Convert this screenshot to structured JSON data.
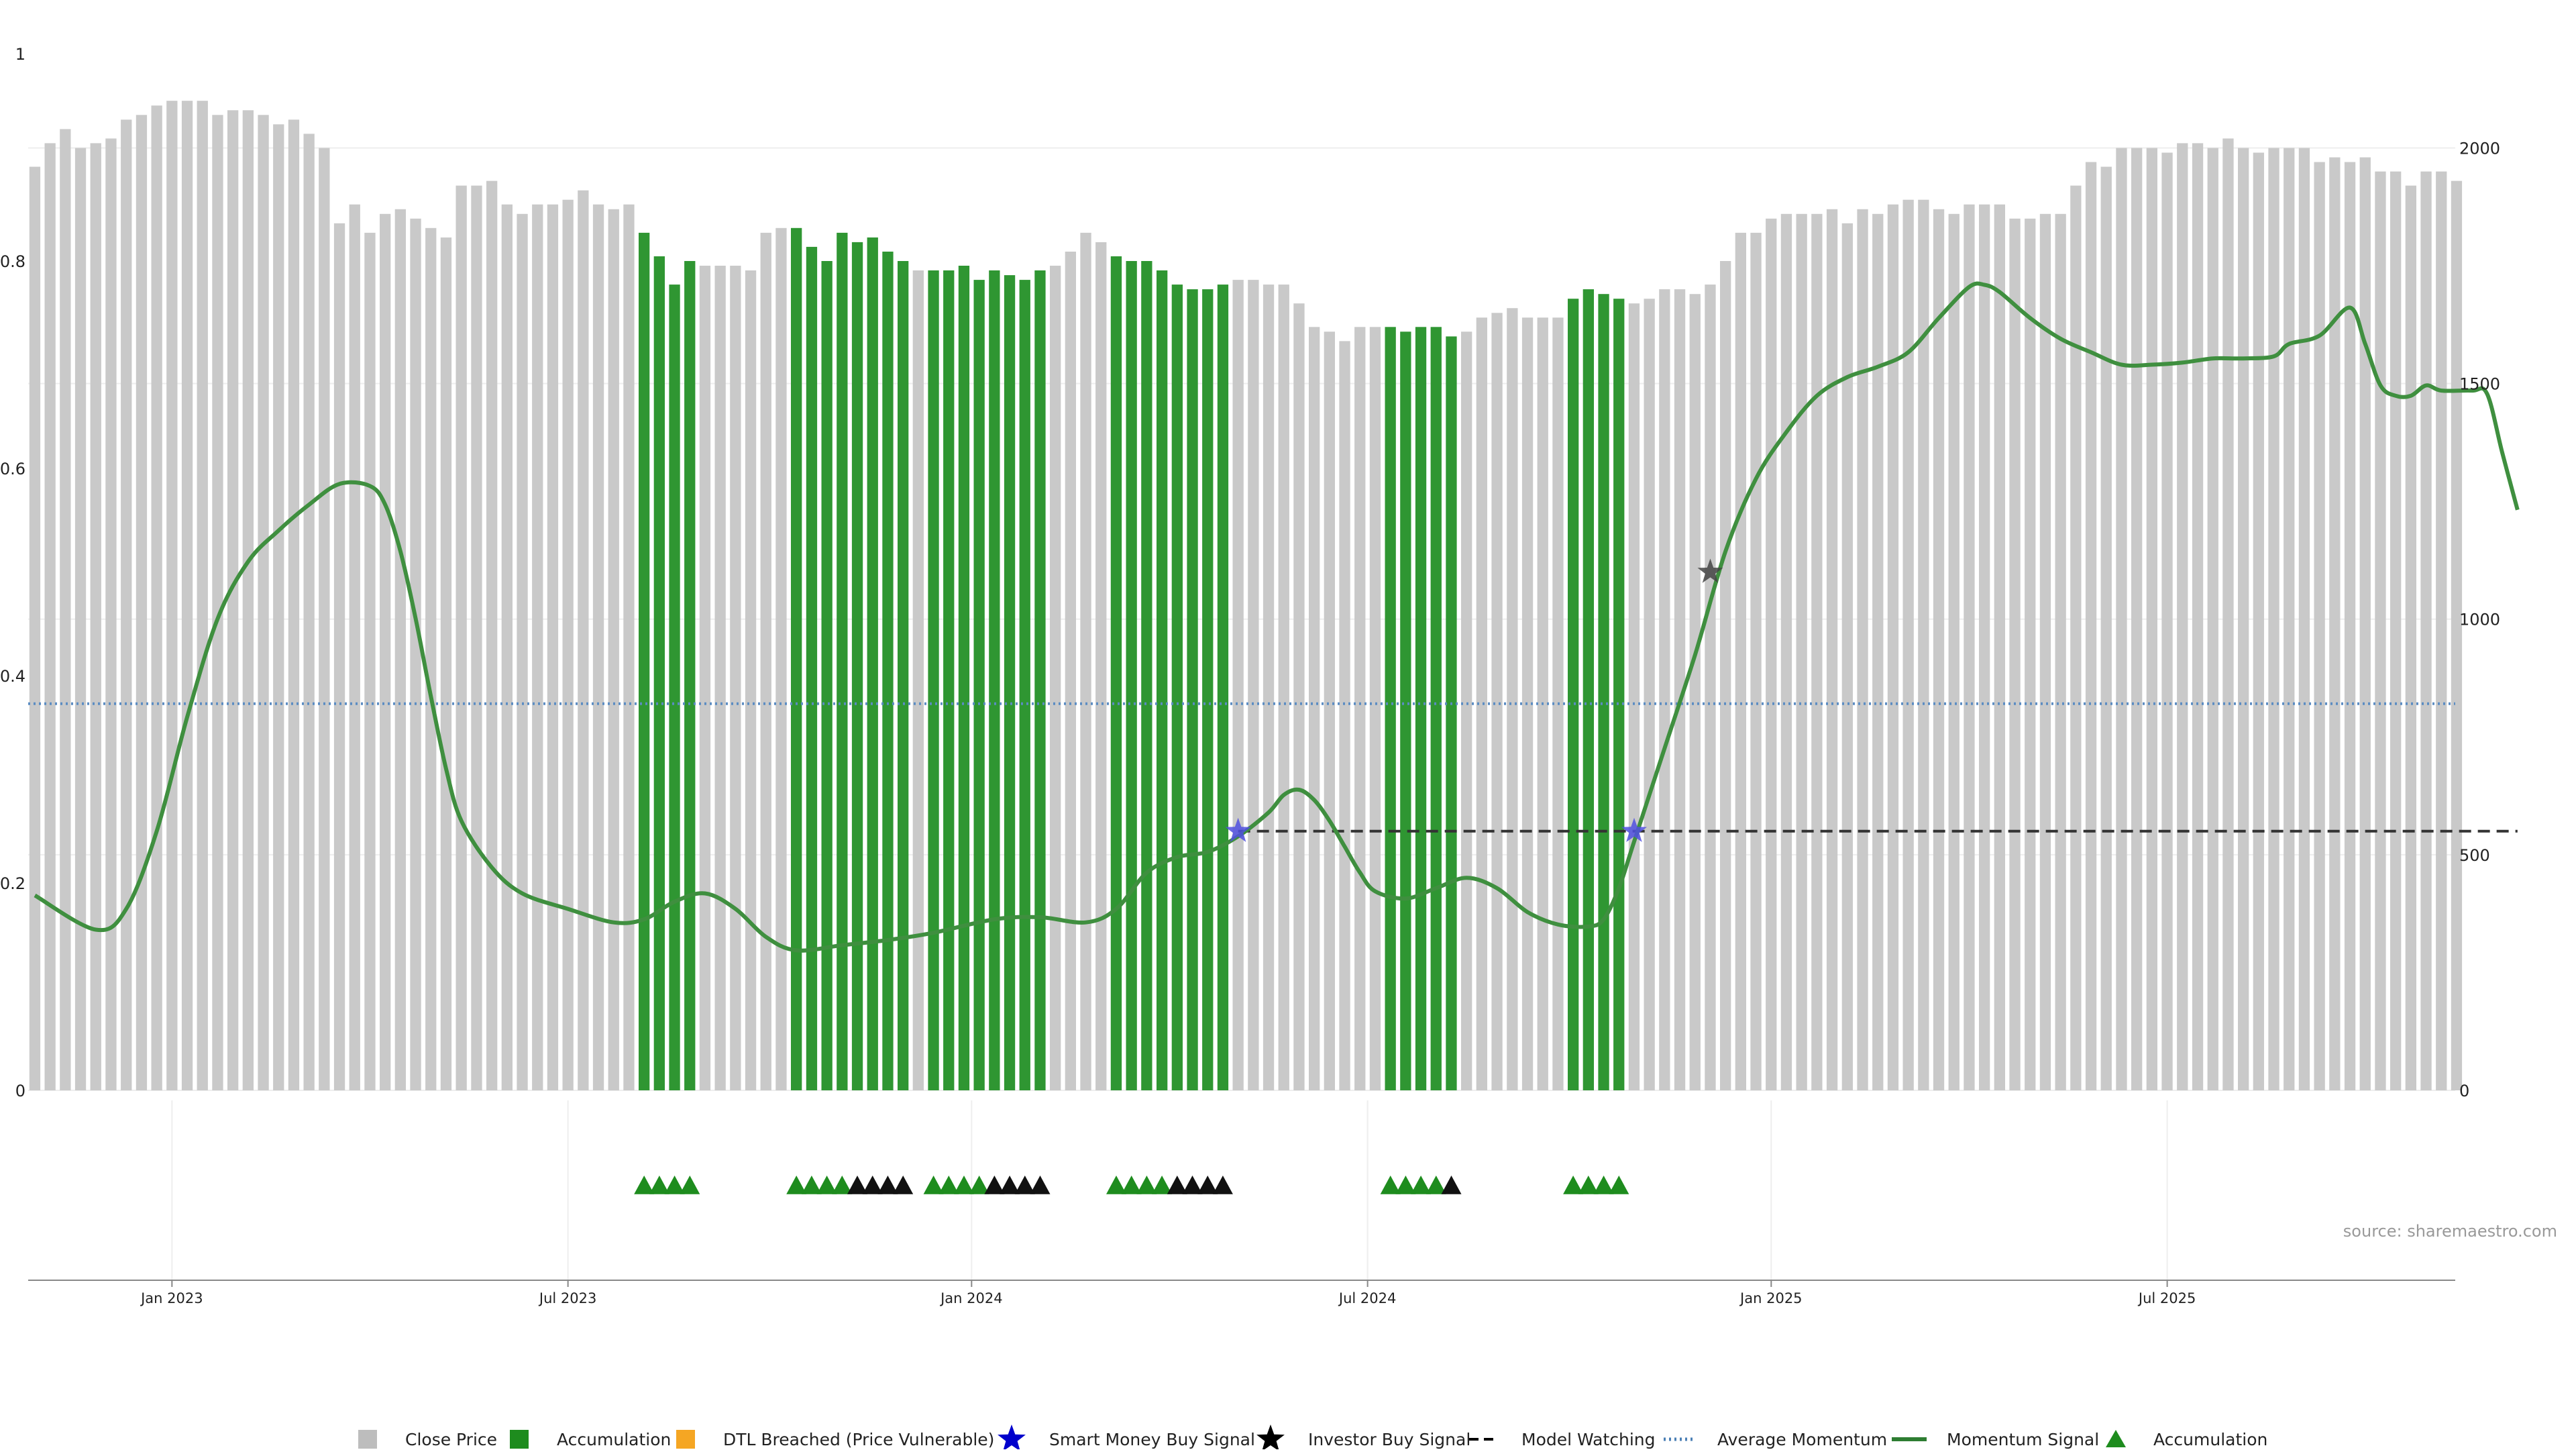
{
  "chart_data": {
    "type": "bar",
    "x_ticks": [
      "Jan 2023",
      "Jul 2023",
      "Jan 2024",
      "Jul 2024",
      "Jan 2025",
      "Jul 2025"
    ],
    "y_left_ticks": [
      "0",
      "0.2",
      "0.4",
      "0.6",
      "0.8",
      "1"
    ],
    "y_left_lim": [
      0,
      1
    ],
    "y_right_ticks": [
      "0",
      "500",
      "1000",
      "1500",
      "2000"
    ],
    "y_right_lim": [
      0,
      2200
    ],
    "grid": true,
    "legend_position": "bottom",
    "source_text": "source: sharemaestro.com",
    "close_price": [
      1960,
      2010,
      2040,
      2000,
      2010,
      2020,
      2060,
      2070,
      2090,
      2100,
      2100,
      2100,
      2070,
      2080,
      2080,
      2070,
      2050,
      2060,
      2030,
      2000,
      1840,
      1880,
      1820,
      1860,
      1870,
      1850,
      1830,
      1810,
      1920,
      1920,
      1930,
      1880,
      1860,
      1880,
      1880,
      1890,
      1910,
      1880,
      1870,
      1880,
      1820,
      1770,
      1710,
      1760,
      1750,
      1750,
      1750,
      1740,
      1820,
      1830,
      1830,
      1790,
      1760,
      1820,
      1800,
      1810,
      1780,
      1760,
      1740,
      1740,
      1740,
      1750,
      1720,
      1740,
      1730,
      1720,
      1740,
      1750,
      1780,
      1820,
      1800,
      1770,
      1760,
      1760,
      1740,
      1710,
      1700,
      1700,
      1710,
      1720,
      1720,
      1710,
      1710,
      1670,
      1620,
      1610,
      1590,
      1620,
      1620,
      1620,
      1610,
      1620,
      1620,
      1600,
      1610,
      1640,
      1650,
      1660,
      1640,
      1640,
      1640,
      1680,
      1700,
      1690,
      1680,
      1670,
      1680,
      1700,
      1700,
      1690,
      1710,
      1760,
      1820,
      1820,
      1850,
      1860,
      1860,
      1860,
      1870,
      1840,
      1870,
      1860,
      1880,
      1890,
      1890,
      1870,
      1860,
      1880,
      1880,
      1880,
      1850,
      1850,
      1860,
      1860,
      1920,
      1970,
      1960,
      2000,
      2000,
      2000,
      1990,
      2010,
      2010,
      2000,
      2020,
      2000,
      1990,
      2000,
      2000,
      2000,
      1970,
      1980,
      1970,
      1980,
      1950,
      1950,
      1920,
      1950,
      1950,
      1930
    ],
    "accumulation_ranges": [
      [
        40,
        43
      ],
      [
        50,
        57
      ],
      [
        59,
        66
      ],
      [
        71,
        78
      ],
      [
        89,
        93
      ],
      [
        101,
        104
      ]
    ],
    "momentum_signal": [
      [
        0,
        0.188
      ],
      [
        4,
        0.155
      ],
      [
        6,
        0.175
      ],
      [
        8,
        0.25
      ],
      [
        10,
        0.36
      ],
      [
        12,
        0.455
      ],
      [
        14,
        0.51
      ],
      [
        16,
        0.54
      ],
      [
        18,
        0.565
      ],
      [
        20,
        0.585
      ],
      [
        22,
        0.583
      ],
      [
        23,
        0.565
      ],
      [
        24,
        0.52
      ],
      [
        25,
        0.455
      ],
      [
        26,
        0.38
      ],
      [
        27,
        0.31
      ],
      [
        28,
        0.26
      ],
      [
        30,
        0.215
      ],
      [
        32,
        0.19
      ],
      [
        35,
        0.175
      ],
      [
        38,
        0.162
      ],
      [
        40,
        0.165
      ],
      [
        42,
        0.182
      ],
      [
        44,
        0.19
      ],
      [
        46,
        0.175
      ],
      [
        48,
        0.148
      ],
      [
        50,
        0.135
      ],
      [
        53,
        0.14
      ],
      [
        56,
        0.145
      ],
      [
        59,
        0.152
      ],
      [
        63,
        0.165
      ],
      [
        66,
        0.167
      ],
      [
        69,
        0.162
      ],
      [
        71,
        0.175
      ],
      [
        73,
        0.21
      ],
      [
        75,
        0.225
      ],
      [
        77,
        0.23
      ],
      [
        79,
        0.245
      ],
      [
        81,
        0.268
      ],
      [
        82,
        0.285
      ],
      [
        83,
        0.29
      ],
      [
        84,
        0.28
      ],
      [
        85,
        0.26
      ],
      [
        86,
        0.235
      ],
      [
        87,
        0.21
      ],
      [
        88,
        0.192
      ],
      [
        90,
        0.185
      ],
      [
        92,
        0.195
      ],
      [
        94,
        0.205
      ],
      [
        96,
        0.195
      ],
      [
        98,
        0.172
      ],
      [
        100,
        0.16
      ],
      [
        102,
        0.158
      ],
      [
        103,
        0.165
      ],
      [
        104,
        0.195
      ],
      [
        105,
        0.24
      ],
      [
        107,
        0.33
      ],
      [
        109,
        0.42
      ],
      [
        111,
        0.52
      ],
      [
        113,
        0.59
      ],
      [
        115,
        0.635
      ],
      [
        117,
        0.67
      ],
      [
        119,
        0.688
      ],
      [
        121,
        0.698
      ],
      [
        123,
        0.712
      ],
      [
        125,
        0.745
      ],
      [
        127,
        0.775
      ],
      [
        128,
        0.777
      ],
      [
        129,
        0.77
      ],
      [
        131,
        0.745
      ],
      [
        133,
        0.725
      ],
      [
        135,
        0.712
      ],
      [
        137,
        0.7
      ],
      [
        139,
        0.7
      ],
      [
        141,
        0.702
      ],
      [
        143,
        0.706
      ],
      [
        145,
        0.706
      ],
      [
        147,
        0.708
      ],
      [
        148,
        0.72
      ],
      [
        150,
        0.728
      ],
      [
        152,
        0.755
      ],
      [
        153,
        0.72
      ],
      [
        154,
        0.68
      ],
      [
        155,
        0.67
      ],
      [
        156,
        0.67
      ],
      [
        157,
        0.68
      ],
      [
        158,
        0.675
      ],
      [
        160,
        0.675
      ],
      [
        161,
        0.672
      ],
      [
        162,
        0.615
      ],
      [
        163,
        0.56
      ]
    ],
    "average_momentum": 0.373,
    "model_watching": {
      "start": 79,
      "end": 163,
      "value": 0.25
    },
    "smart_money_signals": [
      [
        79,
        0.25
      ],
      [
        105,
        0.25
      ]
    ],
    "investor_buy_signals": [
      [
        110,
        0.5
      ]
    ],
    "accumulation_markers": {
      "green": [
        40,
        41,
        42,
        43,
        50,
        51,
        52,
        53,
        59,
        60,
        61,
        62,
        71,
        72,
        73,
        74,
        89,
        90,
        91,
        92,
        101,
        102,
        103,
        104
      ],
      "black": [
        54,
        55,
        56,
        57,
        63,
        64,
        65,
        66,
        75,
        76,
        77,
        78,
        93
      ]
    },
    "legend": [
      {
        "label": "Close Price",
        "marker": "square",
        "color": "#bdbdbd"
      },
      {
        "label": "Accumulation",
        "marker": "square",
        "color": "#1e8c1e"
      },
      {
        "label": "DTL Breached (Price Vulnerable)",
        "marker": "square",
        "color": "#f5a623"
      },
      {
        "label": "Smart Money Buy Signal",
        "marker": "star",
        "color": "#0000cc"
      },
      {
        "label": "Investor Buy Signal",
        "marker": "star",
        "color": "#000000"
      },
      {
        "label": "Model Watching",
        "marker": "dash",
        "color": "#000000"
      },
      {
        "label": "Average Momentum",
        "marker": "dotted",
        "color": "#4a7fb5"
      },
      {
        "label": "Momentum Signal",
        "marker": "line",
        "color": "#2e7d32"
      },
      {
        "label": "Accumulation",
        "marker": "triangle",
        "color": "#1e8c1e"
      }
    ],
    "colors": {
      "close_bar": "#c9c9c9",
      "accumulation_bar": "#2f9632",
      "momentum": "#3f8f3f",
      "average_momentum": "#5b8cc2",
      "model_watching": "#333333",
      "smart_money_star": "#5050e0",
      "investor_star": "#444444",
      "triangle_green": "#1e8c1e",
      "triangle_black": "#111111"
    }
  }
}
